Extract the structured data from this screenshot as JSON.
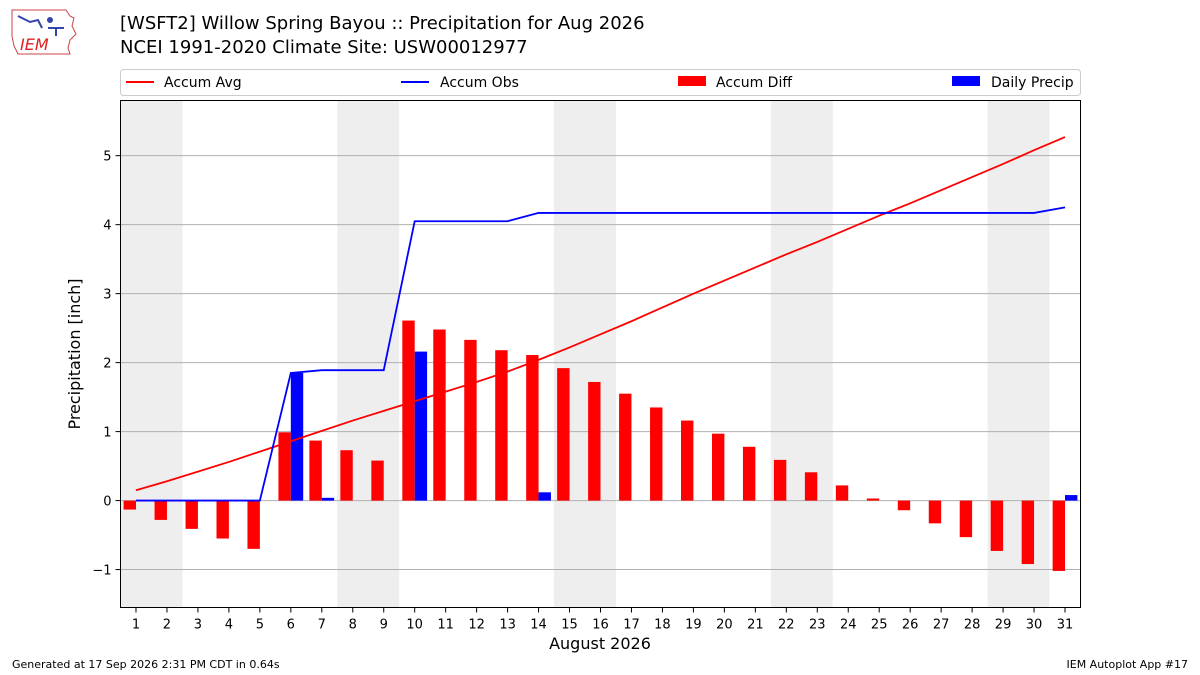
{
  "header": {
    "title_line1": "[WSFT2] Willow Spring Bayou :: Precipitation for Aug 2026",
    "title_line2": "NCEI 1991-2020 Climate Site: USW00012977",
    "logo_text": "IEM"
  },
  "footer": {
    "generated": "Generated at 17 Sep 2026 2:31 PM CDT in 0.64s",
    "app": "IEM Autoplot App #17"
  },
  "chart_data": {
    "type": "bar",
    "xlabel": "August 2026",
    "ylabel": "Precipitation [inch]",
    "xlim": [
      0.5,
      31.5
    ],
    "ylim": [
      -1.55,
      5.8
    ],
    "yticks": [
      -1,
      0,
      1,
      2,
      3,
      4,
      5
    ],
    "ytick_labels": [
      "−1",
      "0",
      "1",
      "2",
      "3",
      "4",
      "5"
    ],
    "categories": [
      "1",
      "2",
      "3",
      "4",
      "5",
      "6",
      "7",
      "8",
      "9",
      "10",
      "11",
      "12",
      "13",
      "14",
      "15",
      "16",
      "17",
      "18",
      "19",
      "20",
      "21",
      "22",
      "23",
      "24",
      "25",
      "26",
      "27",
      "28",
      "29",
      "30",
      "31"
    ],
    "weekend_shading_days": [
      [
        1,
        2
      ],
      [
        8,
        9
      ],
      [
        15,
        16
      ],
      [
        22,
        23
      ],
      [
        29,
        30
      ]
    ],
    "grid": "horizontal",
    "legend_position": "top, above plot",
    "series": [
      {
        "name": "Accum Avg",
        "kind": "line",
        "color": "#ff0000",
        "values": [
          0.15,
          0.28,
          0.42,
          0.56,
          0.71,
          0.86,
          1.01,
          1.16,
          1.3,
          1.44,
          1.58,
          1.72,
          1.87,
          2.04,
          2.22,
          2.41,
          2.6,
          2.8,
          3.0,
          3.19,
          3.38,
          3.57,
          3.75,
          3.94,
          4.13,
          4.31,
          4.5,
          4.69,
          4.88,
          5.08,
          5.27
        ]
      },
      {
        "name": "Accum Obs",
        "kind": "line",
        "color": "#0000ff",
        "values": [
          0,
          0,
          0,
          0,
          0,
          1.85,
          1.89,
          1.89,
          1.89,
          4.05,
          4.05,
          4.05,
          4.05,
          4.17,
          4.17,
          4.17,
          4.17,
          4.17,
          4.17,
          4.17,
          4.17,
          4.17,
          4.17,
          4.17,
          4.17,
          4.17,
          4.17,
          4.17,
          4.17,
          4.17,
          4.25
        ]
      },
      {
        "name": "Accum Diff",
        "kind": "bar",
        "color": "#ff0000",
        "values": [
          -0.13,
          -0.28,
          -0.41,
          -0.55,
          -0.7,
          0.99,
          0.87,
          0.73,
          0.58,
          2.61,
          2.48,
          2.33,
          2.18,
          2.11,
          1.92,
          1.72,
          1.55,
          1.35,
          1.16,
          0.97,
          0.78,
          0.59,
          0.41,
          0.22,
          0.03,
          -0.14,
          -0.33,
          -0.53,
          -0.73,
          -0.92,
          -1.02
        ]
      },
      {
        "name": "Daily Precip",
        "kind": "bar",
        "color": "#0000ff",
        "values": [
          0,
          0,
          0,
          0,
          0,
          1.85,
          0.04,
          0,
          0,
          2.16,
          0,
          0,
          0,
          0.12,
          0,
          0,
          0,
          0,
          0,
          0,
          0,
          0,
          0,
          0,
          0,
          0,
          0,
          0,
          0,
          0,
          0.08
        ]
      }
    ]
  }
}
